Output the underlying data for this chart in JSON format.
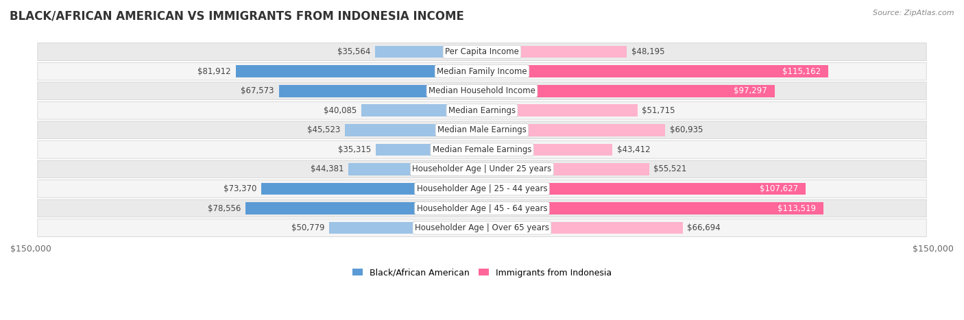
{
  "title": "BLACK/AFRICAN AMERICAN VS IMMIGRANTS FROM INDONESIA INCOME",
  "source": "Source: ZipAtlas.com",
  "categories": [
    "Per Capita Income",
    "Median Family Income",
    "Median Household Income",
    "Median Earnings",
    "Median Male Earnings",
    "Median Female Earnings",
    "Householder Age | Under 25 years",
    "Householder Age | 25 - 44 years",
    "Householder Age | 45 - 64 years",
    "Householder Age | Over 65 years"
  ],
  "black_values": [
    35564,
    81912,
    67573,
    40085,
    45523,
    35315,
    44381,
    73370,
    78556,
    50779
  ],
  "immigrant_values": [
    48195,
    115162,
    97297,
    51715,
    60935,
    43412,
    55521,
    107627,
    113519,
    66694
  ],
  "black_labels": [
    "$35,564",
    "$81,912",
    "$67,573",
    "$40,085",
    "$45,523",
    "$35,315",
    "$44,381",
    "$73,370",
    "$78,556",
    "$50,779"
  ],
  "immigrant_labels": [
    "$48,195",
    "$115,162",
    "$97,297",
    "$51,715",
    "$60,935",
    "$43,412",
    "$55,521",
    "$107,627",
    "$113,519",
    "$66,694"
  ],
  "max_value": 150000,
  "black_color_dark": "#5B9BD5",
  "black_color_light": "#9DC3E6",
  "immigrant_color_dark": "#FF6699",
  "immigrant_color_light": "#FFB3CC",
  "row_bg_color": "#EAEAEA",
  "row_bg_alt": "#F5F5F5",
  "row_border_color": "#CCCCCC",
  "label_fontsize": 8.5,
  "title_fontsize": 12,
  "axis_label": "$150,000",
  "legend_black": "Black/African American",
  "legend_immigrant": "Immigrants from Indonesia",
  "white_text_threshold_black": 58000,
  "white_text_threshold_imm": 85000
}
